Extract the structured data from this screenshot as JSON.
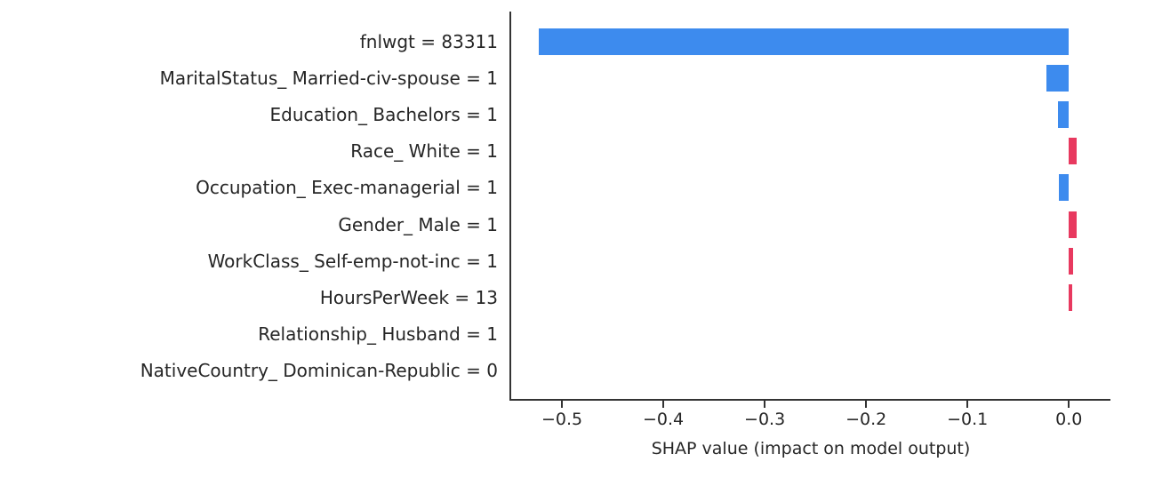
{
  "chart_data": {
    "type": "bar",
    "orientation": "horizontal",
    "title": "",
    "xlabel": "SHAP value (impact on model output)",
    "ylabel": "",
    "categories": [
      "fnlwgt = 83311",
      "MaritalStatus_ Married-civ-spouse = 1",
      "Education_ Bachelors = 1",
      "Race_ White = 1",
      "Occupation_ Exec-managerial = 1",
      "Gender_ Male = 1",
      "WorkClass_ Self-emp-not-inc = 1",
      "HoursPerWeek = 13",
      "Relationship_ Husband = 1",
      "NativeCountry_ Dominican-Republic = 0"
    ],
    "values": [
      -0.523,
      -0.022,
      -0.011,
      0.008,
      -0.01,
      0.008,
      0.004,
      0.003,
      0.0,
      0.0
    ],
    "xlim": [
      -0.55,
      0.041
    ],
    "xticks": [
      -0.5,
      -0.4,
      -0.3,
      -0.2,
      -0.1,
      0.0
    ],
    "xtick_labels": [
      "−0.5",
      "−0.4",
      "−0.3",
      "−0.2",
      "−0.1",
      "0.0"
    ],
    "grid": false,
    "legend": null,
    "colors": {
      "positive": "#e8395f",
      "negative": "#3d8bee",
      "spine": "#333333",
      "text": "#262626",
      "background": "#ffffff"
    }
  }
}
